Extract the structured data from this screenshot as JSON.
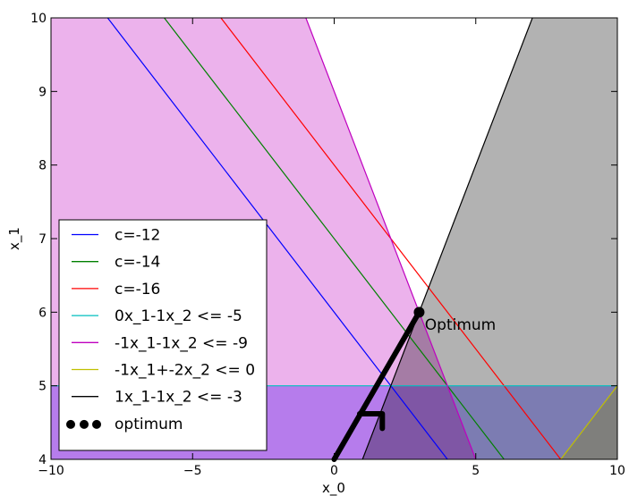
{
  "chart_data": {
    "type": "line",
    "title": "",
    "xlabel": "x_0",
    "ylabel": "x_1",
    "xlim": [
      -10,
      10
    ],
    "ylim": [
      4,
      10
    ],
    "xticks": [
      -10,
      -5,
      0,
      5,
      10
    ],
    "yticks": [
      4,
      5,
      6,
      7,
      8,
      9,
      10
    ],
    "xtick_labels": [
      "−10",
      "−5",
      "0",
      "5",
      "10"
    ],
    "ytick_labels": [
      "4",
      "5",
      "6",
      "7",
      "8",
      "9",
      "10"
    ],
    "grid": false,
    "legend_position": "lower-left",
    "regions": [
      {
        "name": "0x1-1x2 <= -5",
        "color": "#0000ff",
        "opacity": 0.3,
        "polygon": [
          [
            -10,
            4
          ],
          [
            10,
            4
          ],
          [
            10,
            5
          ],
          [
            -10,
            5
          ]
        ]
      },
      {
        "name": "-1x1-1x2 <= -9",
        "color": "#bf00bf",
        "opacity": 0.3,
        "polygon": [
          [
            -10,
            10
          ],
          [
            -1,
            10
          ],
          [
            5,
            4
          ],
          [
            -10,
            4
          ]
        ]
      },
      {
        "name": "-1x1+-2x2 <= 0",
        "color": "#bfbf00",
        "opacity": 0.3,
        "polygon": [
          [
            8,
            4
          ],
          [
            10,
            4
          ],
          [
            10,
            5
          ]
        ]
      },
      {
        "name": "1x1-1x2 <= -3",
        "color": "#000000",
        "opacity": 0.3,
        "polygon": [
          [
            1,
            4
          ],
          [
            7,
            10
          ],
          [
            10,
            10
          ],
          [
            10,
            4
          ]
        ]
      }
    ],
    "series": [
      {
        "name": "c=-12",
        "color": "#0000ff",
        "x": [
          -8,
          4
        ],
        "y": [
          10,
          4
        ]
      },
      {
        "name": "c=-14",
        "color": "#008000",
        "x": [
          -6,
          6
        ],
        "y": [
          10,
          4
        ]
      },
      {
        "name": "c=-16",
        "color": "#ff0000",
        "x": [
          -4,
          8
        ],
        "y": [
          10,
          4
        ]
      },
      {
        "name": "0x1-1x2 <= -5",
        "color": "#00bfbf",
        "x": [
          -10,
          10
        ],
        "y": [
          5,
          5
        ]
      },
      {
        "name": "-1x1-1x2 <= -9",
        "color": "#bf00bf",
        "x": [
          -1,
          5
        ],
        "y": [
          10,
          4
        ]
      },
      {
        "name": "-1x1+-2x2 <= 0",
        "color": "#bfbf00",
        "x": [
          8,
          10
        ],
        "y": [
          4,
          5
        ]
      },
      {
        "name": "1x1-1x2 <= -3",
        "color": "#000000",
        "x": [
          1,
          7
        ],
        "y": [
          4,
          10
        ]
      }
    ],
    "optimum_path": {
      "name": "optimum",
      "x": [
        0,
        3
      ],
      "y": [
        4,
        6
      ]
    },
    "optimum_point": {
      "x": 3,
      "y": 6
    },
    "arrow_head": {
      "x": [
        0.9,
        1.7,
        1.7
      ],
      "y": [
        4.62,
        4.62,
        4.42
      ]
    },
    "annotation": {
      "text": "Optimum",
      "x": 3.2,
      "y": 5.82
    },
    "legend": [
      {
        "label": "c=-12",
        "color": "#0000ff",
        "marker": "line"
      },
      {
        "label": "c=-14",
        "color": "#008000",
        "marker": "line"
      },
      {
        "label": "c=-16",
        "color": "#ff0000",
        "marker": "line"
      },
      {
        "label": "0x_1-1x_2 <= -5",
        "color": "#00bfbf",
        "marker": "line"
      },
      {
        "label": "-1x_1-1x_2 <= -9",
        "color": "#bf00bf",
        "marker": "line"
      },
      {
        "label": "-1x_1+-2x_2 <= 0",
        "color": "#bfbf00",
        "marker": "line"
      },
      {
        "label": "1x_1-1x_2 <= -3",
        "color": "#000000",
        "marker": "line"
      },
      {
        "label": "optimum",
        "color": "#000000",
        "marker": "dots"
      }
    ]
  }
}
